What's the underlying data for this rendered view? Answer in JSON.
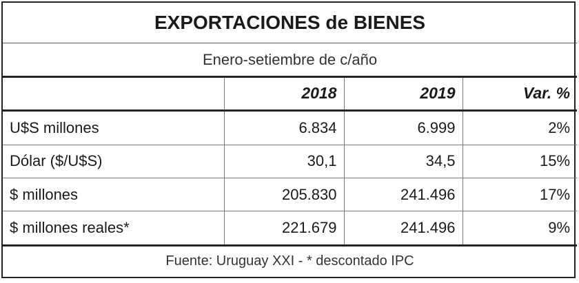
{
  "chart_data": {
    "type": "table",
    "title": "EXPORTACIONES de BIENES",
    "subtitle": "Enero-setiembre de c/año",
    "columns": [
      "",
      "2018",
      "2019",
      "Var. %"
    ],
    "rows": [
      {
        "label": "U$S millones",
        "values": [
          "6.834",
          "6.999",
          "2%"
        ]
      },
      {
        "label": "Dólar ($/U$S)",
        "values": [
          "30,1",
          "34,5",
          "15%"
        ]
      },
      {
        "label": "$ millones",
        "values": [
          "205.830",
          "241.496",
          "17%"
        ]
      },
      {
        "label": "$ millones reales*",
        "values": [
          "221.679",
          "241.496",
          "9%"
        ]
      }
    ],
    "source": "Fuente: Uruguay XXI - * descontado IPC"
  }
}
